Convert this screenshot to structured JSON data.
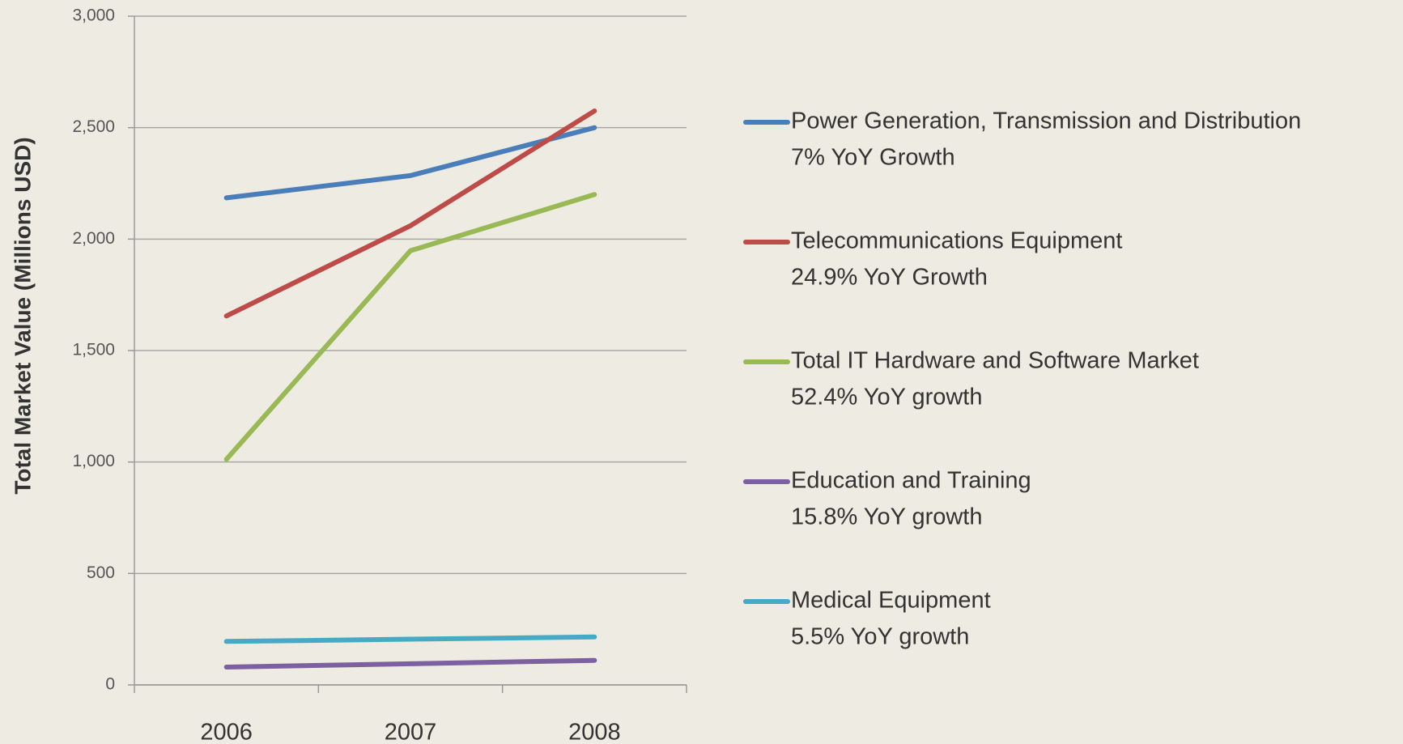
{
  "chart_data": {
    "type": "line",
    "y_label": "Total Market Value (Millions USD)",
    "categories": [
      "2006",
      "2007",
      "2008"
    ],
    "ylim": [
      0,
      3000
    ],
    "yticks": [
      0,
      500,
      {
        "value": 1000,
        "label": "1,000"
      },
      {
        "value": 1500,
        "label": "1,500"
      },
      {
        "value": 2000,
        "label": "2,000"
      },
      {
        "value": 2500,
        "label": "2,500"
      },
      {
        "value": 3000,
        "label": "3,000"
      }
    ],
    "grid": true,
    "legend": "right",
    "series": [
      {
        "name": "Power Generation, Transmission and Distribution",
        "growth_label": "7% YoY Growth",
        "color": "#4a7ebb",
        "values": [
          2185,
          2285,
          2500
        ]
      },
      {
        "name": "Telecommunications Equipment",
        "growth_label": "24.9% YoY Growth",
        "color": "#be4b48",
        "values": [
          1655,
          2060,
          2575
        ]
      },
      {
        "name": "Total IT Hardware and Software Market",
        "growth_label": "52.4% YoY growth",
        "color": "#98b954",
        "values": [
          1012,
          1948,
          2200
        ]
      },
      {
        "name": "Education and Training",
        "growth_label": "15.8% YoY growth",
        "color": "#7d60a0",
        "values": [
          80,
          95,
          110
        ]
      },
      {
        "name": "Medical Equipment",
        "growth_label": "5.5% YoY growth",
        "color": "#46aac5",
        "values": [
          195,
          205,
          215
        ]
      }
    ]
  }
}
